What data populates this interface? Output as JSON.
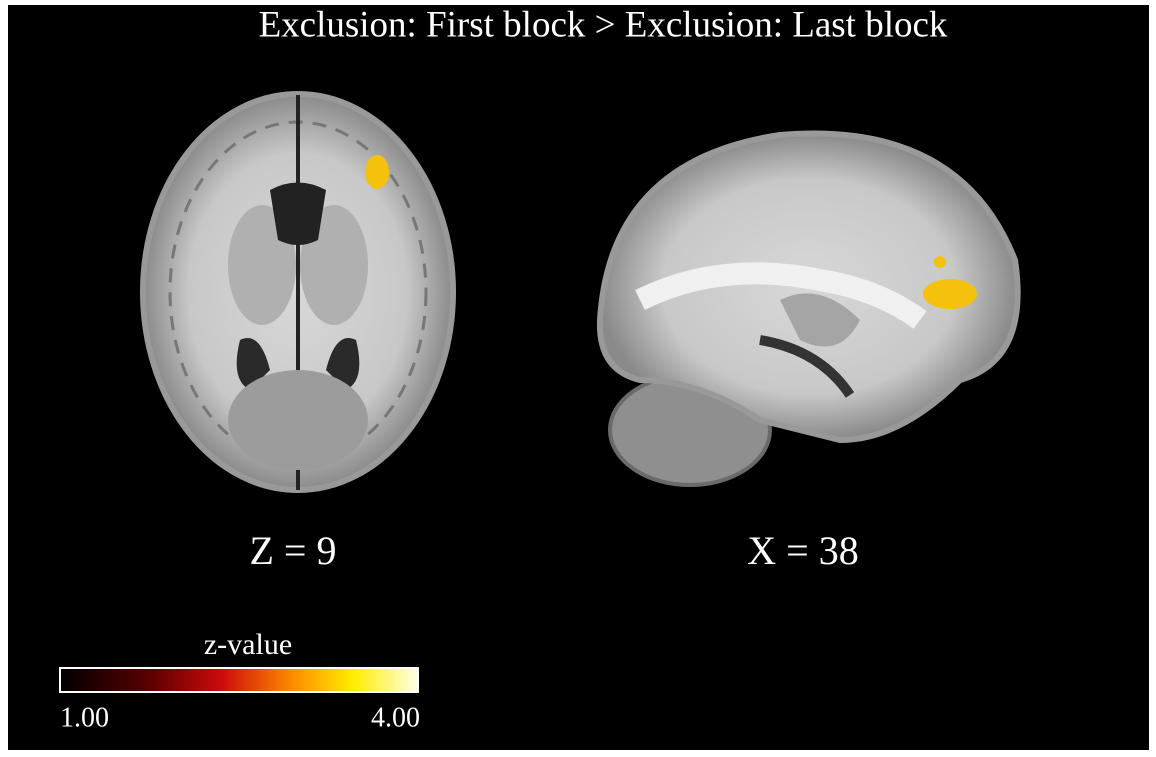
{
  "title": "Exclusion: First block > Exclusion: Last block",
  "panels": [
    {
      "label": "Z = 9"
    },
    {
      "label": "X = 38"
    }
  ],
  "colorbar": {
    "label": "z-value",
    "min_label": "1.00",
    "max_label": "4.00"
  }
}
